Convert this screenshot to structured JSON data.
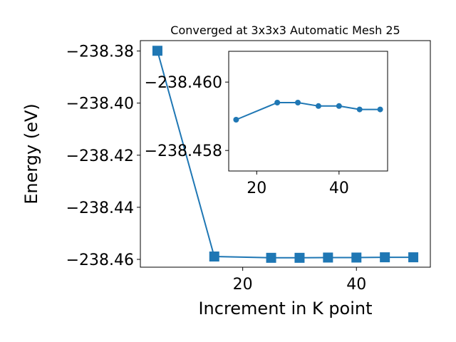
{
  "chart_data": [
    {
      "type": "line",
      "title": "Converged at 3x3x3 Automatic Mesh 25",
      "xlabel": "Increment in K point",
      "ylabel": "Energy (eV)",
      "xlim": [
        2,
        53
      ],
      "ylim": [
        -238.463,
        -238.376
      ],
      "xticks": [
        20,
        40
      ],
      "xtick_labels": [
        "20",
        "40"
      ],
      "yticks": [
        -238.38,
        -238.4,
        -238.42,
        -238.44,
        -238.46
      ],
      "ytick_labels": [
        "−238.38",
        "−238.40",
        "−238.42",
        "−238.44",
        "−238.46"
      ],
      "marker": "square",
      "color": "#1f77b4",
      "series": [
        {
          "x": [
            5,
            15,
            25,
            30,
            35,
            40,
            45,
            50
          ],
          "y": [
            -238.3799,
            -238.4589,
            -238.4594,
            -238.4594,
            -238.4593,
            -238.4593,
            -238.4592,
            -238.4592
          ]
        }
      ]
    },
    {
      "type": "line",
      "inset": true,
      "xlim": [
        13.2,
        51.8
      ],
      "ylim": [
        -238.4574,
        -238.4609
      ],
      "xticks": [
        20,
        40
      ],
      "xtick_labels": [
        "20",
        "40"
      ],
      "yticks": [
        -238.46,
        -238.458
      ],
      "ytick_labels": [
        "−238.460",
        "−238.458"
      ],
      "marker": "circle",
      "color": "#1f77b4",
      "series": [
        {
          "x": [
            15,
            25,
            30,
            35,
            40,
            45,
            50
          ],
          "y": [
            -238.4589,
            -238.4594,
            -238.4594,
            -238.4593,
            -238.4593,
            -238.4592,
            -238.4592
          ]
        }
      ]
    }
  ]
}
